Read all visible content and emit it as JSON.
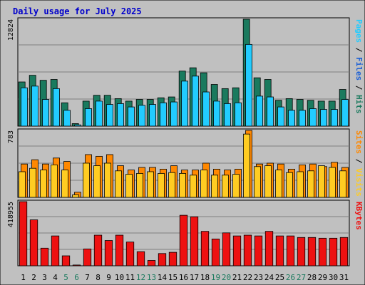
{
  "chart_data": {
    "type": "bar",
    "title": "Daily usage for July 2025",
    "days": [
      "1",
      "2",
      "3",
      "4",
      "5",
      "6",
      "7",
      "8",
      "9",
      "10",
      "11",
      "12",
      "13",
      "14",
      "15",
      "16",
      "17",
      "18",
      "19",
      "20",
      "21",
      "22",
      "23",
      "24",
      "25",
      "26",
      "27",
      "28",
      "29",
      "30",
      "31"
    ],
    "weekend_days": [
      "5",
      "6",
      "12",
      "13",
      "19",
      "20",
      "26",
      "27"
    ],
    "colors": {
      "pages": "#1a7a5e",
      "files": "#22ccff",
      "hits": "#1a7a5e",
      "visits": "#ffcc22",
      "sites": "#ff8800",
      "kbytes": "#ee1111",
      "weekday": "#000000",
      "weekend": "#1a7a5e",
      "panel": "#c0c0c0",
      "frame": "#000000",
      "grid": "#808080"
    },
    "panels": [
      {
        "id": "hits",
        "ymax_label": "12824",
        "ymax": 12824,
        "right_label_parts": [
          {
            "text": "Pages",
            "color": "#22ccff"
          },
          {
            "text": " / ",
            "color": "#000000"
          },
          {
            "text": "Files",
            "color": "#1a5fd6"
          },
          {
            "text": " / ",
            "color": "#000000"
          },
          {
            "text": "Hits",
            "color": "#1a7a5e"
          }
        ],
        "series": [
          {
            "name": "Hits",
            "color": "#1a7a5e",
            "values": [
              5300,
              6100,
              5500,
              5600,
              2800,
              300,
              3000,
              3700,
              3700,
              3300,
              3000,
              3200,
              3200,
              3400,
              3500,
              6600,
              7000,
              6400,
              5000,
              4500,
              4600,
              12824,
              5800,
              5600,
              3100,
              3300,
              3200,
              3100,
              3000,
              3000,
              4400
            ]
          },
          {
            "name": "Files",
            "color": "#22ccff",
            "values": [
              4600,
              4800,
              3200,
              4500,
              1900,
              150,
              2100,
              3000,
              2600,
              2700,
              2300,
              2500,
              2600,
              2800,
              2900,
              5400,
              6000,
              4100,
              3000,
              2700,
              2800,
              9800,
              3600,
              3500,
              2300,
              1900,
              1900,
              2100,
              2000,
              2000,
              3200
            ]
          },
          {
            "name": "Pages",
            "color": "#1a7a5e",
            "values": [
              0,
              0,
              0,
              0,
              0,
              0,
              0,
              0,
              0,
              0,
              0,
              0,
              0,
              0,
              0,
              0,
              0,
              0,
              0,
              0,
              0,
              0,
              0,
              0,
              0,
              0,
              0,
              0,
              0,
              0,
              0
            ]
          }
        ]
      },
      {
        "id": "visits",
        "ymax_label": "783",
        "ymax": 783,
        "right_label_parts": [
          {
            "text": "Sites",
            "color": "#ff8800"
          },
          {
            "text": " / ",
            "color": "#000000"
          },
          {
            "text": "Visits",
            "color": "#ffcc22"
          }
        ],
        "series": [
          {
            "name": "Sites",
            "color": "#ff8800",
            "values": [
              390,
              440,
              390,
              460,
              420,
              60,
              500,
              480,
              500,
              370,
              320,
              350,
              350,
              330,
              370,
              320,
              320,
              400,
              330,
              320,
              330,
              783,
              390,
              400,
              390,
              330,
              380,
              390,
              360,
              410,
              350
            ]
          },
          {
            "name": "Visits",
            "color": "#ffcc22",
            "values": [
              300,
              340,
              320,
              380,
              320,
              30,
              400,
              370,
              400,
              310,
              270,
              280,
              300,
              280,
              290,
              280,
              260,
              320,
              260,
              260,
              270,
              740,
              360,
              370,
              320,
              290,
              300,
              310,
              370,
              350,
              310
            ]
          }
        ]
      },
      {
        "id": "kbytes",
        "ymax_label": "418955",
        "ymax": 418955,
        "right_label_parts": [
          {
            "text": "KBytes",
            "color": "#ee1111"
          }
        ],
        "series": [
          {
            "name": "KBytes",
            "color": "#ee1111",
            "values": [
              418955,
              300000,
              115000,
              195000,
              65000,
              5000,
              110000,
              200000,
              165000,
              200000,
              155000,
              92000,
              35000,
              80000,
              88000,
              330000,
              320000,
              225000,
              175000,
              215000,
              195000,
              200000,
              195000,
              225000,
              195000,
              195000,
              185000,
              185000,
              180000,
              180000,
              185000
            ]
          }
        ]
      }
    ]
  }
}
